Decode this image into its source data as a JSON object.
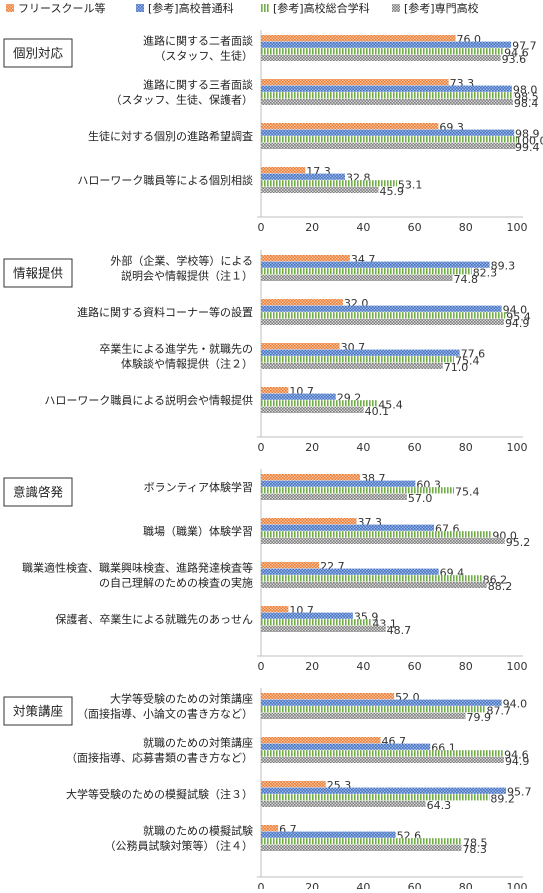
{
  "legend": {
    "placement": "top",
    "items": [
      {
        "name": "フリースクール等",
        "color": "#ED7D31",
        "pattern": "dots"
      },
      {
        "name": "[参考]高校普通科",
        "color": "#4472C4",
        "pattern": "dots"
      },
      {
        "name": "[参考]高校総合学科",
        "color": "#70AD47",
        "pattern": "vertical"
      },
      {
        "name": "[参考]専門高校",
        "color": "#7F7F7F",
        "pattern": "dots"
      }
    ]
  },
  "chart_data": [
    {
      "type": "bar",
      "orientation": "horizontal",
      "section": "個別対応",
      "xlim": [
        0,
        100
      ],
      "xticks": [
        0,
        20,
        40,
        60,
        80,
        100
      ],
      "categories": [
        [
          "進路に関する二者面談",
          "（スタッフ、生徒）"
        ],
        [
          "進路に関する三者面談",
          "（スタッフ、生徒、保護者）"
        ],
        [
          "生徒に対する個別の進路希望調査"
        ],
        [
          "ハローワーク職員等による個別相談"
        ]
      ],
      "series": [
        {
          "name": "フリースクール等",
          "values": [
            76.0,
            73.3,
            69.3,
            17.3
          ]
        },
        {
          "name": "[参考]高校普通科",
          "values": [
            97.7,
            98.0,
            98.9,
            32.8
          ]
        },
        {
          "name": "[参考]高校総合学科",
          "values": [
            94.6,
            98.5,
            100.0,
            53.1
          ]
        },
        {
          "name": "[参考]専門高校",
          "values": [
            93.6,
            98.4,
            99.4,
            45.9
          ]
        }
      ],
      "labels": [
        [
          "76.0",
          "73.3",
          "69.3",
          "17.3"
        ],
        [
          "97.7",
          "98.0",
          "98.9",
          "32.8"
        ],
        [
          "94.6",
          "98.5",
          "100.0",
          "53.1"
        ],
        [
          "93.6",
          "98.4",
          "99.4",
          "45.9"
        ]
      ]
    },
    {
      "type": "bar",
      "orientation": "horizontal",
      "section": "情報提供",
      "xlim": [
        0,
        100
      ],
      "xticks": [
        0,
        20,
        40,
        60,
        80,
        100
      ],
      "categories": [
        [
          "外部（企業、学校等）による",
          "説明会や情報提供（注１）"
        ],
        [
          "進路に関する資料コーナー等の設置"
        ],
        [
          "卒業生による進学先・就職先の",
          "体験談や情報提供（注２）"
        ],
        [
          "ハローワーク職員による説明会や情報提供"
        ]
      ],
      "series": [
        {
          "name": "フリースクール等",
          "values": [
            34.7,
            32.0,
            30.7,
            10.7
          ]
        },
        {
          "name": "[参考]高校普通科",
          "values": [
            89.3,
            94.0,
            77.6,
            29.2
          ]
        },
        {
          "name": "[参考]高校総合学科",
          "values": [
            82.3,
            95.4,
            75.4,
            45.4
          ]
        },
        {
          "name": "[参考]専門高校",
          "values": [
            74.8,
            94.9,
            71.0,
            40.1
          ]
        }
      ],
      "labels": [
        [
          "34.7",
          "32.0",
          "30.7",
          "10.7"
        ],
        [
          "89.3",
          "94.0",
          "77.6",
          "29.2"
        ],
        [
          "82.3",
          "95.4",
          "75.4",
          "45.4"
        ],
        [
          "74.8",
          "94.9",
          "71.0",
          "40.1"
        ]
      ]
    },
    {
      "type": "bar",
      "orientation": "horizontal",
      "section": "意識啓発",
      "xlim": [
        0,
        100
      ],
      "xticks": [
        0,
        20,
        40,
        60,
        80,
        100
      ],
      "categories": [
        [
          "ボランティア体験学習"
        ],
        [
          "職場（職業）体験学習"
        ],
        [
          "職業適性検査、職業興味検査、進路発達検査等",
          "の自己理解のための検査の実施"
        ],
        [
          "保護者、卒業生による就職先のあっせん"
        ]
      ],
      "series": [
        {
          "name": "フリースクール等",
          "values": [
            38.7,
            37.3,
            22.7,
            10.7
          ]
        },
        {
          "name": "[参考]高校普通科",
          "values": [
            60.3,
            67.6,
            69.4,
            35.9
          ]
        },
        {
          "name": "[参考]高校総合学科",
          "values": [
            75.4,
            90.0,
            86.2,
            43.1
          ]
        },
        {
          "name": "[参考]専門高校",
          "values": [
            57.0,
            95.2,
            88.2,
            48.7
          ]
        }
      ],
      "labels": [
        [
          "38.7",
          "37.3",
          "22.7",
          "10.7"
        ],
        [
          "60.3",
          "67.6",
          "69.4",
          "35.9"
        ],
        [
          "75.4",
          "90.0",
          "86.2",
          "43.1"
        ],
        [
          "57.0",
          "95.2",
          "88.2",
          "48.7"
        ]
      ]
    },
    {
      "type": "bar",
      "orientation": "horizontal",
      "section": "対策講座",
      "xlim": [
        0,
        100
      ],
      "xticks": [
        0,
        20,
        40,
        60,
        80,
        100
      ],
      "categories": [
        [
          "大学等受験のための対策講座",
          "（面接指導、小論文の書き方など）"
        ],
        [
          "就職のための対策講座",
          "（面接指導、応募書類の書き方など）"
        ],
        [
          "大学等受験のための模擬試験（注３）"
        ],
        [
          "就職のための模擬試験",
          "（公務員試験対策等）（注４）"
        ]
      ],
      "series": [
        {
          "name": "フリースクール等",
          "values": [
            52.0,
            46.7,
            25.3,
            6.7
          ]
        },
        {
          "name": "[参考]高校普通科",
          "values": [
            94.0,
            66.1,
            95.7,
            52.6
          ]
        },
        {
          "name": "[参考]高校総合学科",
          "values": [
            87.7,
            94.6,
            89.2,
            78.5
          ]
        },
        {
          "name": "[参考]専門高校",
          "values": [
            79.9,
            94.9,
            64.3,
            78.3
          ]
        }
      ],
      "labels": [
        [
          "52.0",
          "46.7",
          "25.3",
          "6.7"
        ],
        [
          "94.0",
          "66.1",
          "95.7",
          "52.6"
        ],
        [
          "87.7",
          "94.6",
          "89.2",
          "78.5"
        ],
        [
          "79.9",
          "94.9",
          "64.3",
          "78.3"
        ]
      ]
    }
  ]
}
